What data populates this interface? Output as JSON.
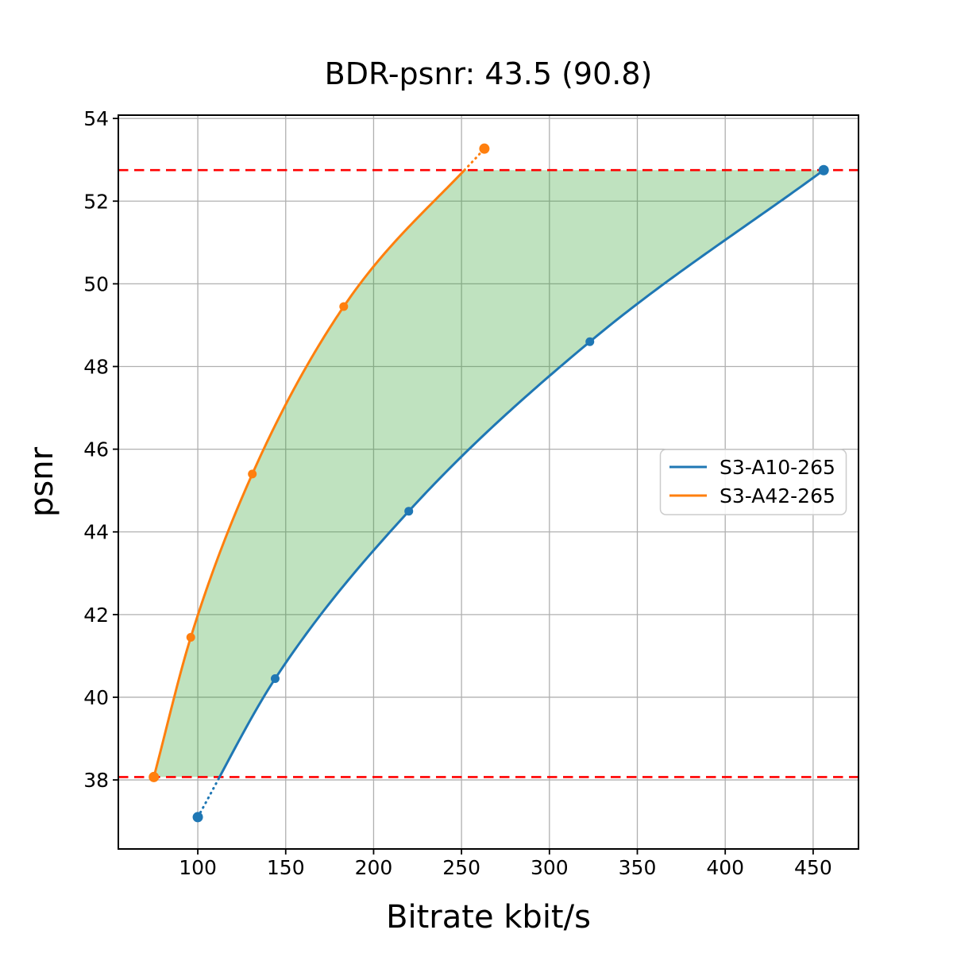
{
  "title": "BDR-psnr: 43.5 (90.8)",
  "axes": {
    "xlabel": "Bitrate kbit/s",
    "ylabel": "psnr"
  },
  "legend": {
    "entries": [
      "S3-A10-265",
      "S3-A42-265"
    ],
    "position": "center right"
  },
  "chart_data": {
    "type": "line",
    "title": "BDR-psnr: 43.5 (90.8)",
    "xlabel": "Bitrate kbit/s",
    "ylabel": "psnr",
    "xlim": [
      54.8,
      475.8
    ],
    "ylim": [
      36.33,
      54.08
    ],
    "xticks": [
      100,
      150,
      200,
      250,
      300,
      350,
      400,
      450
    ],
    "yticks": [
      38,
      40,
      42,
      44,
      46,
      48,
      50,
      52,
      54
    ],
    "grid": true,
    "grid_color": "#b0b0b0",
    "series": [
      {
        "name": "S3-A10-265",
        "color": "#1f77b4",
        "x": [
          100,
          144,
          220,
          323,
          456
        ],
        "y": [
          37.1,
          40.45,
          44.5,
          48.6,
          52.75
        ]
      },
      {
        "name": "S3-A42-265",
        "color": "#ff7f0e",
        "x": [
          75,
          96,
          131,
          183,
          263
        ],
        "y": [
          38.07,
          41.45,
          45.4,
          49.45,
          53.27
        ]
      }
    ],
    "bd_band": {
      "low": 38.07,
      "high": 52.75,
      "line_color": "#ff0000",
      "line_style": "dashed",
      "fill_color": "#2ca02c",
      "fill_opacity": 0.3
    }
  }
}
